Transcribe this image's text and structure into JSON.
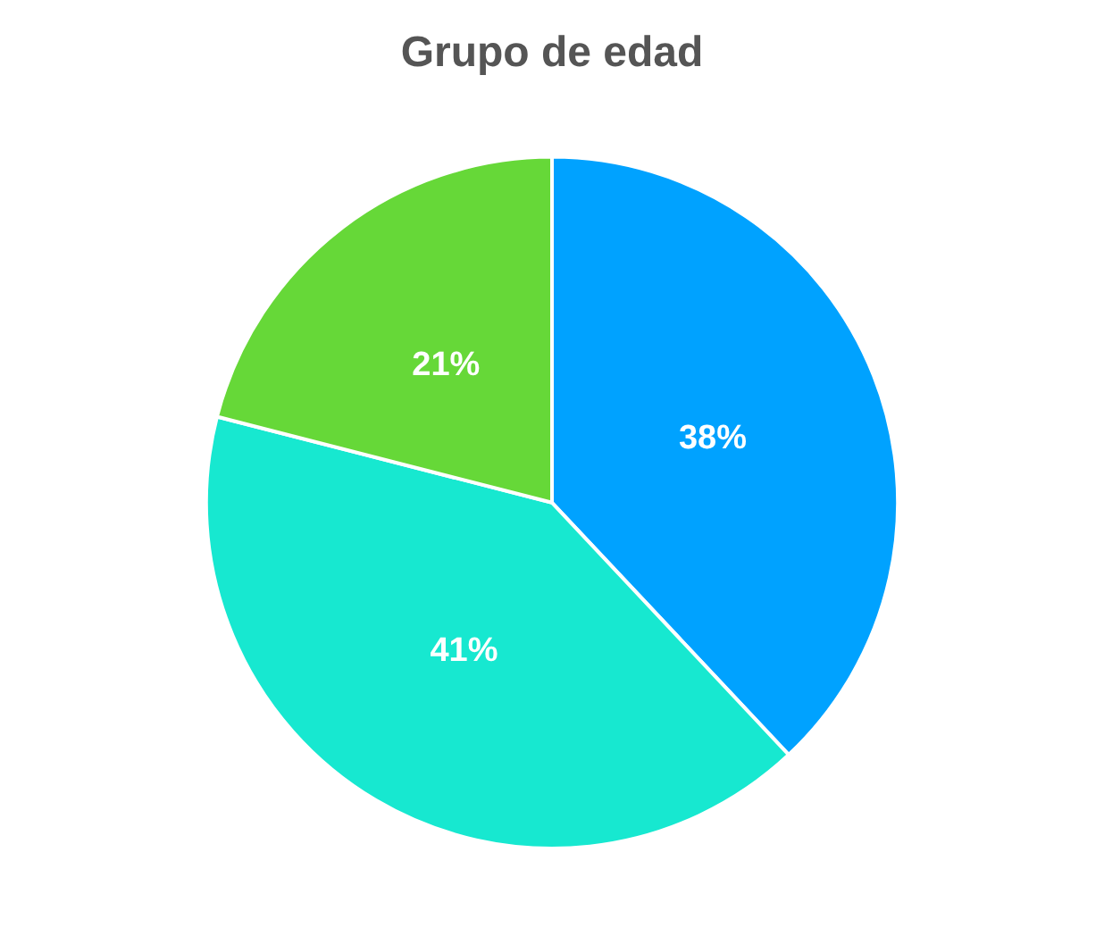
{
  "chart_data": {
    "type": "pie",
    "title": "Grupo de edad",
    "categories": [
      null,
      null,
      null
    ],
    "values": [
      38,
      41,
      21
    ],
    "colors": [
      "#00a2ff",
      "#17e8d0",
      "#66d838"
    ],
    "value_labels": [
      "38%",
      "41%",
      "21%"
    ],
    "legend": false
  }
}
